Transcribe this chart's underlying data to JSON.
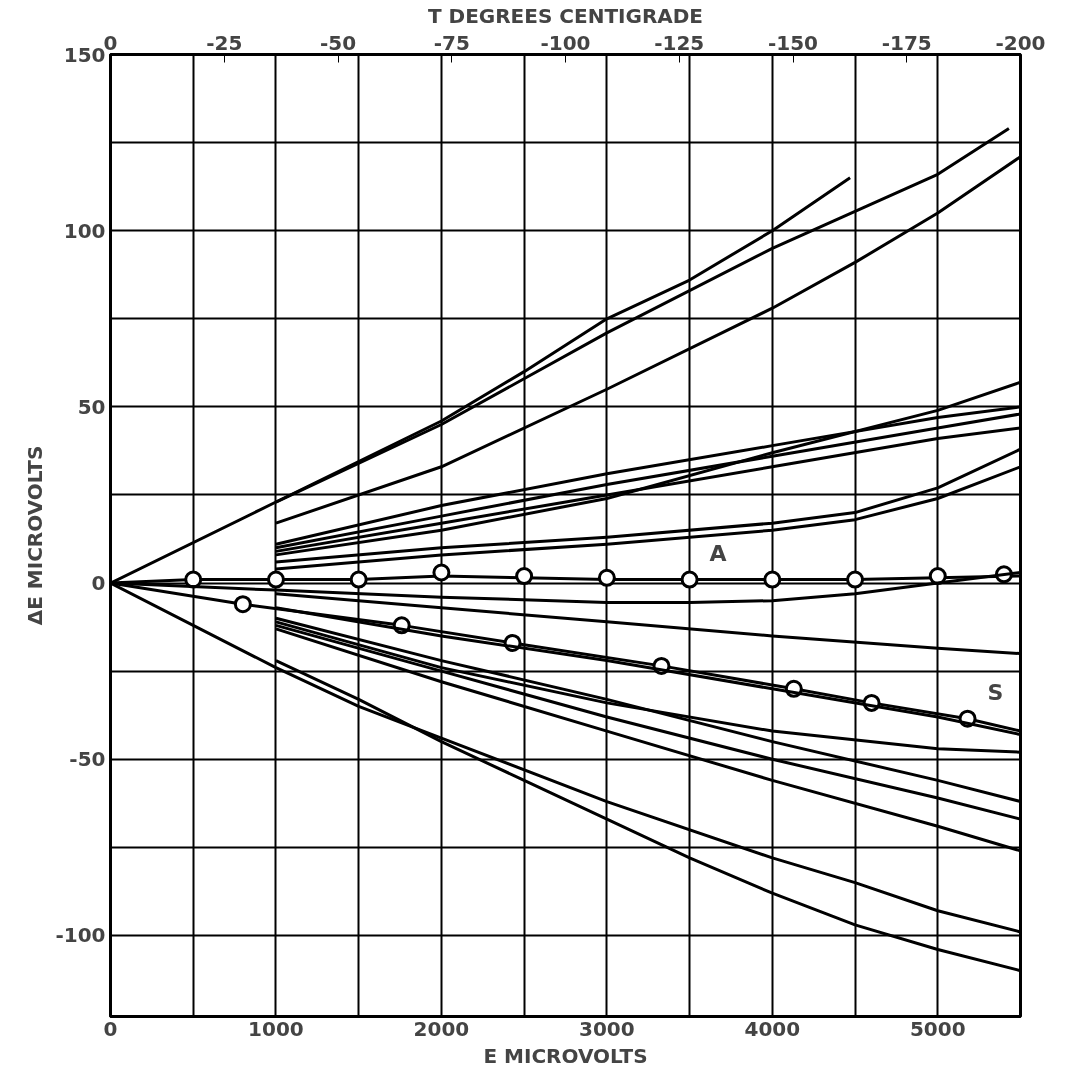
{
  "chart_data": {
    "type": "line",
    "xlabel": "E MICROVOLTS",
    "ylabel": "ΔE MICROVOLTS",
    "x2label": "T DEGREES CENTIGRADE",
    "xlim": [
      0,
      5500
    ],
    "ylim": [
      -123,
      150
    ],
    "x2lim": [
      0,
      -200
    ],
    "xticks": [
      0,
      {
        "value": 500,
        "label": null
      },
      1000,
      {
        "value": 1500,
        "label": null
      },
      2000,
      {
        "value": 2500,
        "label": null
      },
      3000,
      {
        "value": 3500,
        "label": null
      },
      4000,
      {
        "value": 4500,
        "label": null
      },
      5000,
      {
        "value": 5500,
        "label": null
      }
    ],
    "yticks": [
      {
        "value": -100,
        "label": "-100"
      },
      {
        "value": -75,
        "label": null
      },
      {
        "value": -50,
        "label": "-50"
      },
      {
        "value": -25,
        "label": null
      },
      0,
      {
        "value": 25,
        "label": null
      },
      50,
      {
        "value": 75,
        "label": null
      },
      100,
      {
        "value": 125,
        "label": null
      },
      150
    ],
    "x2ticks": [
      0,
      -25,
      -50,
      -75,
      -100,
      -125,
      -150,
      -175,
      -200
    ],
    "grid": true,
    "annotations": [
      {
        "text": "A",
        "x": 3500,
        "y": 1
      },
      {
        "text": "S",
        "x": 5180,
        "y": -38.5
      }
    ],
    "series": [
      {
        "color": "#000000",
        "x": [
          0,
          1000,
          2000,
          2500,
          3000,
          3500,
          4000,
          4470
        ],
        "values": [
          0,
          23,
          46,
          60,
          75,
          86,
          100,
          115
        ]
      },
      {
        "color": "#000000",
        "x": [
          1000,
          2000,
          3000,
          4000,
          5000,
          5430
        ],
        "values": [
          23,
          45,
          71,
          95,
          116,
          129
        ]
      },
      {
        "color": "#000000",
        "x": [
          1000,
          2000,
          3000,
          4000,
          4500,
          5000,
          5500
        ],
        "values": [
          17,
          33,
          55,
          78,
          91,
          105,
          121
        ]
      },
      {
        "color": "#000000",
        "x": [
          1000,
          2000,
          3000,
          4000,
          5000,
          5500
        ],
        "values": [
          8,
          15,
          24,
          37,
          49,
          57
        ]
      },
      {
        "color": "#000000",
        "x": [
          1000,
          2000,
          3000,
          4000,
          5000,
          5500
        ],
        "values": [
          11,
          22,
          31,
          39,
          47,
          50
        ]
      },
      {
        "color": "#000000",
        "x": [
          1000,
          2000,
          3000,
          4000,
          5000,
          5500
        ],
        "values": [
          10,
          19,
          28,
          36,
          44,
          48
        ]
      },
      {
        "color": "#000000",
        "x": [
          1000,
          2000,
          3000,
          4000,
          5000,
          5500
        ],
        "values": [
          9,
          17,
          25,
          33,
          41,
          44
        ]
      },
      {
        "color": "#000000",
        "x": [
          1000,
          2000,
          3000,
          4000,
          4500,
          5000,
          5500
        ],
        "values": [
          6,
          10,
          13,
          17,
          20,
          27,
          38
        ]
      },
      {
        "color": "#000000",
        "x": [
          1000,
          2000,
          3000,
          4000,
          4500,
          5000,
          5500
        ],
        "values": [
          4,
          8,
          11,
          15,
          18,
          24,
          33
        ]
      },
      {
        "color": "#000000",
        "x": [
          0,
          500,
          1000,
          1500,
          2000,
          2500,
          3000,
          3500,
          4000,
          4500,
          5000,
          5500
        ],
        "values": [
          0,
          1,
          1,
          1,
          2,
          1.5,
          1,
          1,
          1,
          1,
          1.5,
          2
        ]
      },
      {
        "type": "scatter",
        "marker": "circle",
        "color": "#000000",
        "x": [
          500,
          1000,
          1500,
          2000,
          2500,
          3000,
          3500,
          4000,
          4500,
          5000,
          5400
        ],
        "values": [
          1,
          1,
          1,
          3,
          2,
          1.5,
          1,
          1,
          1,
          2,
          2.5
        ]
      },
      {
        "color": "#000000",
        "x": [
          0,
          1000,
          2000,
          3000,
          3500,
          4000,
          4500,
          5000,
          5500
        ],
        "values": [
          0,
          -2,
          -4,
          -5.5,
          -5.5,
          -5,
          -3,
          0,
          3
        ]
      },
      {
        "color": "#000000",
        "x": [
          1000,
          2000,
          3000,
          4000,
          5000,
          5500
        ],
        "values": [
          -3,
          -7,
          -11,
          -15,
          -18.5,
          -20
        ]
      },
      {
        "color": "#000000",
        "x": [
          0,
          800,
          1760,
          2430,
          3330,
          4130,
          4600,
          5180,
          5500
        ],
        "values": [
          0,
          -6,
          -12,
          -17,
          -23.5,
          -30,
          -34,
          -38.5,
          -42
        ]
      },
      {
        "type": "scatter",
        "marker": "circle",
        "color": "#000000",
        "x": [
          800,
          1760,
          2430,
          3330,
          4130,
          4600,
          5180
        ],
        "values": [
          -6,
          -12,
          -17,
          -23.5,
          -30,
          -34,
          -38.5
        ]
      },
      {
        "color": "#000000",
        "x": [
          1000,
          2000,
          3000,
          4000,
          5000,
          5500
        ],
        "values": [
          -7,
          -15,
          -22,
          -30,
          -38,
          -43
        ]
      },
      {
        "color": "#000000",
        "x": [
          1000,
          2000,
          3000,
          4000,
          5000,
          5500
        ],
        "values": [
          -11,
          -24,
          -34,
          -42,
          -47,
          -48
        ]
      },
      {
        "color": "#000000",
        "x": [
          1000,
          2000,
          3000,
          4000,
          5000,
          5500
        ],
        "values": [
          -10,
          -22,
          -33,
          -45,
          -56,
          -62
        ]
      },
      {
        "color": "#000000",
        "x": [
          1000,
          2000,
          3000,
          4000,
          5000,
          5500
        ],
        "values": [
          -12,
          -25,
          -38,
          -50,
          -61,
          -67
        ]
      },
      {
        "color": "#000000",
        "x": [
          1000,
          2000,
          3000,
          4000,
          5000,
          5500
        ],
        "values": [
          -13,
          -28,
          -42,
          -56,
          -69,
          -76
        ]
      },
      {
        "color": "#000000",
        "x": [
          0,
          1000,
          1500,
          2000,
          3000,
          4000,
          4500,
          5000,
          5500
        ],
        "values": [
          0,
          -24,
          -35,
          -44,
          -62,
          -78,
          -85,
          -93,
          -99
        ]
      },
      {
        "color": "#000000",
        "x": [
          1000,
          1500,
          2000,
          2500,
          3000,
          3500,
          4000,
          4500,
          5000,
          5500
        ],
        "values": [
          -22,
          -33,
          -45,
          -56,
          -67,
          -78,
          -88,
          -97,
          -104,
          -110
        ]
      }
    ]
  }
}
